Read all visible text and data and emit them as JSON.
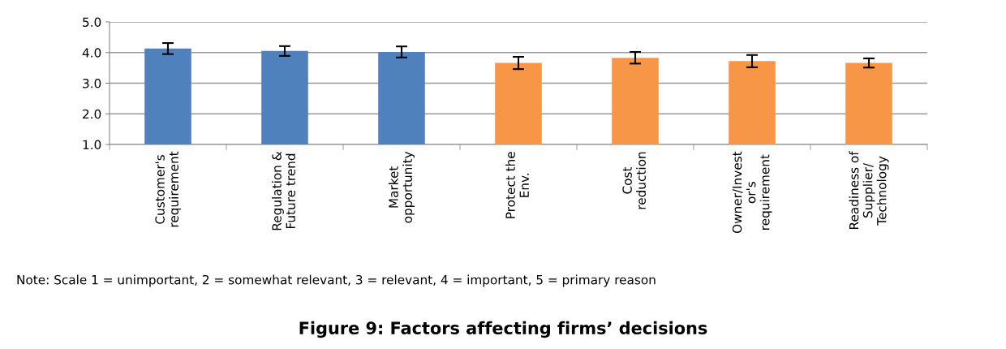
{
  "chart_data": {
    "type": "bar",
    "title": "Figure 9: Factors affecting firms’ decisions",
    "categories": [
      "Customer's\nrequirement",
      "Regulation &\nFuture trend",
      "Market\nopportunity",
      "Protect the\nEnv.",
      "Cost\nreduction",
      "Owner/Invest\nor's\nrequirement",
      "Readiness of\nSupplier/\nTechnology"
    ],
    "values": [
      4.13,
      4.05,
      4.02,
      3.66,
      3.83,
      3.72,
      3.66
    ],
    "errors": [
      0.18,
      0.16,
      0.18,
      0.2,
      0.19,
      0.2,
      0.15
    ],
    "colors": [
      "#4f81bd",
      "#4f81bd",
      "#4f81bd",
      "#f79646",
      "#f79646",
      "#f79646",
      "#f79646"
    ],
    "ylim": [
      1,
      5
    ],
    "yticks": [
      {
        "value": 1,
        "label": "1.0"
      },
      {
        "value": 2,
        "label": "2.0"
      },
      {
        "value": 3,
        "label": "3.0"
      },
      {
        "value": 4,
        "label": "4.0"
      },
      {
        "value": 5,
        "label": "5.0"
      }
    ],
    "grid": "y",
    "annotations": [
      "Note: Scale 1 = unimportant, 2 = somewhat relevant, 3 = relevant, 4 = important, 5 = primary reason"
    ]
  }
}
